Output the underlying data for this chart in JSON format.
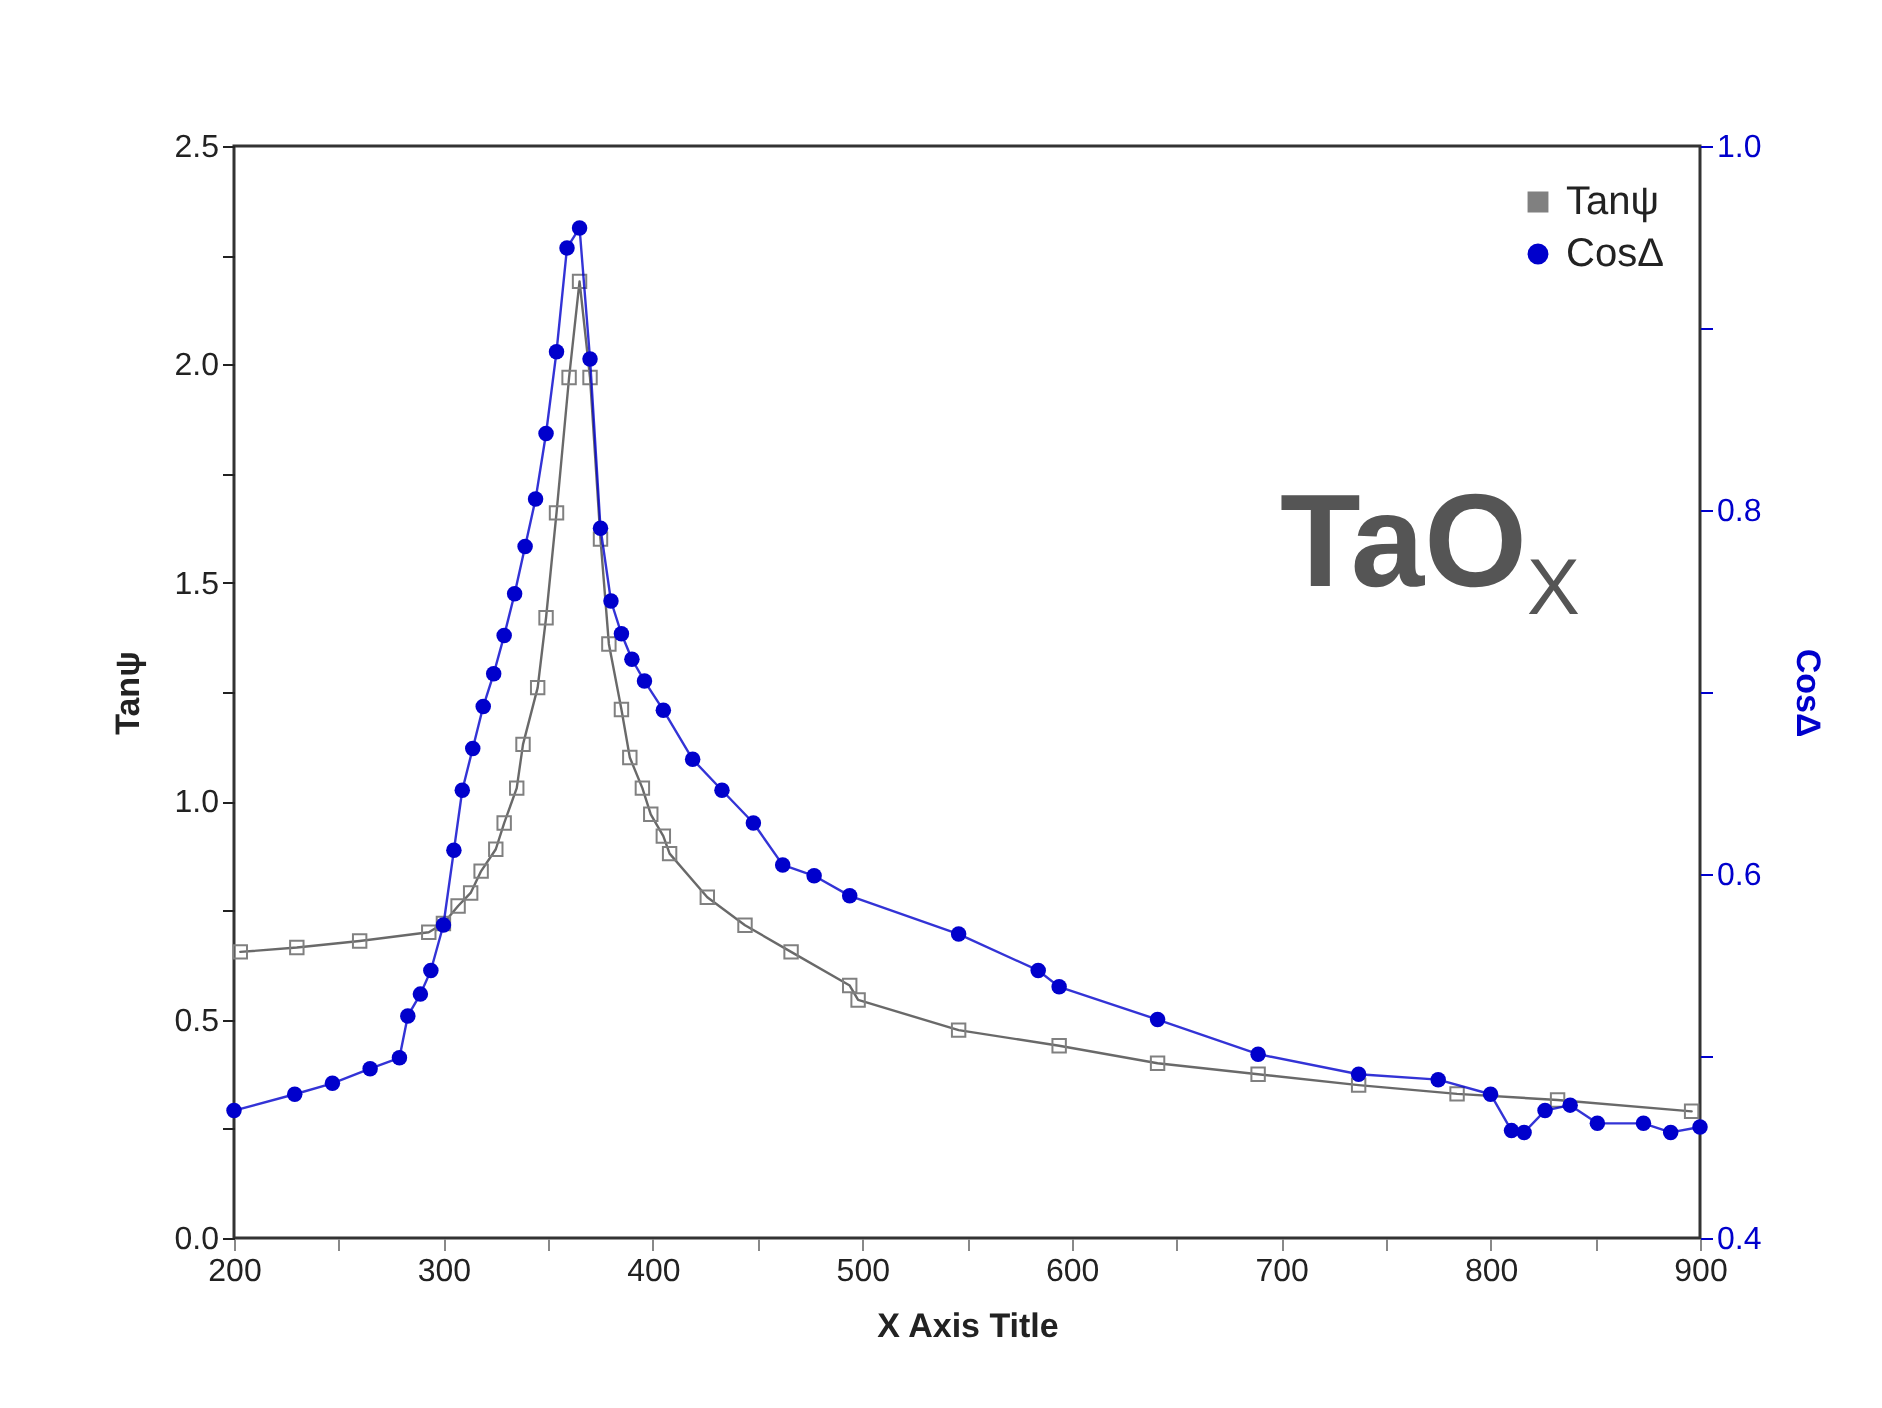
{
  "chart_data": {
    "type": "line",
    "xlabel": "X Axis Title",
    "ylabel": "Tanψ",
    "y2label": "CosΔ",
    "annotations": [
      "TaO$_{X}$"
    ],
    "xlim": [
      200,
      900
    ],
    "xticks": [
      200,
      {
        "value": 250,
        "label": null
      },
      300,
      {
        "value": 350,
        "label": null
      },
      400,
      {
        "value": 450,
        "label": null
      },
      500,
      {
        "value": 550,
        "label": null
      },
      600,
      {
        "value": 650,
        "label": null
      },
      700,
      {
        "value": 750,
        "label": null
      },
      800,
      {
        "value": 850,
        "label": null
      },
      900
    ],
    "ylim": [
      0,
      2.5
    ],
    "yticks": [
      {
        "value": 0,
        "label": "0.0"
      },
      {
        "value": 0.25,
        "label": null
      },
      {
        "value": 0.5,
        "label": "0.5"
      },
      {
        "value": 0.75,
        "label": null
      },
      {
        "value": 1,
        "label": "1.0"
      },
      {
        "value": 1.25,
        "label": null
      },
      {
        "value": 1.5,
        "label": "1.5"
      },
      {
        "value": 1.75,
        "label": null
      },
      {
        "value": 2,
        "label": "2.0"
      },
      {
        "value": 2.25,
        "label": null
      },
      {
        "value": 2.5,
        "label": "2.5"
      }
    ],
    "y2lim": [
      0.4,
      1
    ],
    "y2ticks": [
      {
        "value": 0.4,
        "label": "0.4"
      },
      {
        "value": 0.5,
        "label": null
      },
      {
        "value": 0.6,
        "label": "0.6"
      },
      {
        "value": 0.7,
        "label": null
      },
      {
        "value": 0.8,
        "label": "0.8"
      },
      {
        "value": 0.9,
        "label": null
      },
      {
        "value": 1,
        "label": "1.0"
      }
    ],
    "legend": "top right",
    "grid": false,
    "series": [
      {
        "name": "Tanψ",
        "color": "#808080",
        "marker": "square",
        "x": [
          203,
          230,
          260,
          293,
          300,
          307,
          313,
          318,
          325,
          329,
          335,
          338,
          345,
          349,
          354,
          360,
          365,
          370,
          375,
          379,
          385,
          389,
          395,
          399,
          405,
          408,
          426,
          444,
          466,
          494,
          498,
          546,
          594,
          641,
          689,
          737,
          784,
          832,
          896
        ],
        "values": [
          0.655,
          0.665,
          0.68,
          0.7,
          0.72,
          0.76,
          0.79,
          0.84,
          0.89,
          0.95,
          1.03,
          1.13,
          1.26,
          1.42,
          1.66,
          1.97,
          2.19,
          1.97,
          1.6,
          1.36,
          1.21,
          1.1,
          1.03,
          0.97,
          0.92,
          0.88,
          0.78,
          0.716,
          0.655,
          0.578,
          0.545,
          0.476,
          0.44,
          0.4,
          0.375,
          0.35,
          0.33,
          0.316,
          0.29
        ]
      },
      {
        "name": "CosΔ",
        "color": "#0000cc",
        "marker": "circle",
        "axis": "y2",
        "x": [
          200,
          229,
          247,
          265,
          279,
          283,
          289,
          294,
          300,
          305,
          309,
          314,
          319,
          324,
          329,
          334,
          339,
          344,
          349,
          354,
          359,
          365,
          370,
          375,
          380,
          385,
          390,
          396,
          405,
          419,
          433,
          448,
          462,
          477,
          494,
          546,
          584,
          594,
          641,
          689,
          737,
          775,
          800,
          810,
          816,
          826,
          838,
          851,
          873,
          886,
          900
        ],
        "values": [
          0.47,
          0.479,
          0.485,
          0.493,
          0.499,
          0.522,
          0.534,
          0.547,
          0.572,
          0.613,
          0.646,
          0.669,
          0.692,
          0.71,
          0.731,
          0.754,
          0.78,
          0.806,
          0.842,
          0.887,
          0.944,
          0.955,
          0.883,
          0.79,
          0.75,
          0.732,
          0.718,
          0.706,
          0.69,
          0.663,
          0.646,
          0.628,
          0.605,
          0.599,
          0.588,
          0.567,
          0.547,
          0.538,
          0.52,
          0.501,
          0.49,
          0.487,
          0.479,
          0.459,
          0.458,
          0.47,
          0.473,
          0.463,
          0.463,
          0.458,
          0.461
        ]
      }
    ]
  }
}
